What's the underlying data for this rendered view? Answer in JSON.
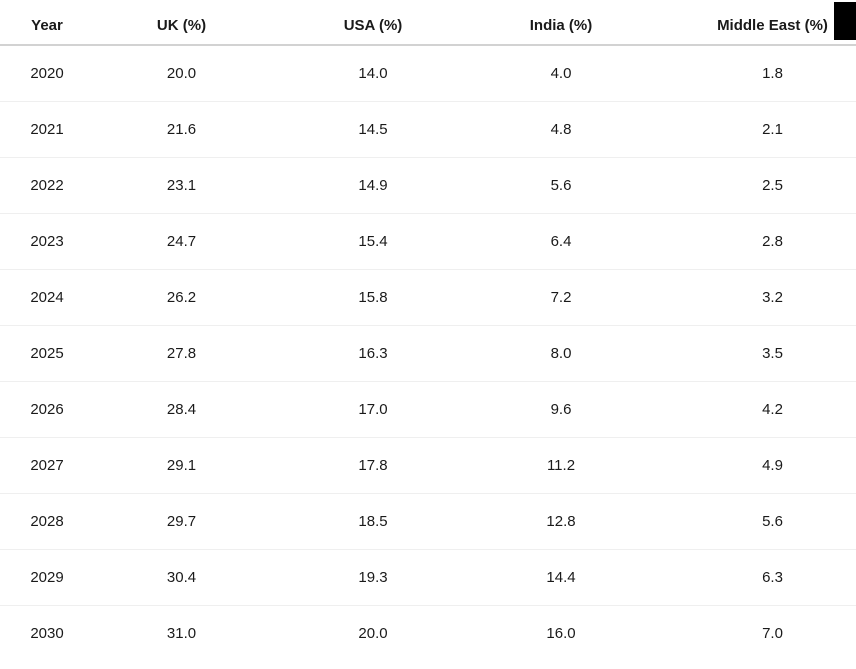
{
  "table": {
    "columns": [
      "Year",
      "UK (%)",
      "USA (%)",
      "India (%)",
      "Middle East (%)"
    ],
    "rows": [
      [
        "2020",
        "20.0",
        "14.0",
        "4.0",
        "1.8"
      ],
      [
        "2021",
        "21.6",
        "14.5",
        "4.8",
        "2.1"
      ],
      [
        "2022",
        "23.1",
        "14.9",
        "5.6",
        "2.5"
      ],
      [
        "2023",
        "24.7",
        "15.4",
        "6.4",
        "2.8"
      ],
      [
        "2024",
        "26.2",
        "15.8",
        "7.2",
        "3.2"
      ],
      [
        "2025",
        "27.8",
        "16.3",
        "8.0",
        "3.5"
      ],
      [
        "2026",
        "28.4",
        "17.0",
        "9.6",
        "4.2"
      ],
      [
        "2027",
        "29.1",
        "17.8",
        "11.2",
        "4.9"
      ],
      [
        "2028",
        "29.7",
        "18.5",
        "12.8",
        "5.6"
      ],
      [
        "2029",
        "30.4",
        "19.3",
        "14.4",
        "6.3"
      ],
      [
        "2030",
        "31.0",
        "20.0",
        "16.0",
        "7.0"
      ]
    ]
  },
  "chart_data": {
    "type": "table",
    "columns": [
      "Year",
      "UK (%)",
      "USA (%)",
      "India (%)",
      "Middle East (%)"
    ],
    "rows": [
      [
        2020,
        20.0,
        14.0,
        4.0,
        1.8
      ],
      [
        2021,
        21.6,
        14.5,
        4.8,
        2.1
      ],
      [
        2022,
        23.1,
        14.9,
        5.6,
        2.5
      ],
      [
        2023,
        24.7,
        15.4,
        6.4,
        2.8
      ],
      [
        2024,
        26.2,
        15.8,
        7.2,
        3.2
      ],
      [
        2025,
        27.8,
        16.3,
        8.0,
        3.5
      ],
      [
        2026,
        28.4,
        17.0,
        9.6,
        4.2
      ],
      [
        2027,
        29.1,
        17.8,
        11.2,
        4.9
      ],
      [
        2028,
        29.7,
        18.5,
        12.8,
        5.6
      ],
      [
        2029,
        30.4,
        19.3,
        14.4,
        6.3
      ],
      [
        2030,
        31.0,
        20.0,
        16.0,
        7.0
      ]
    ],
    "series": [
      {
        "name": "UK (%)",
        "values": [
          20.0,
          21.6,
          23.1,
          24.7,
          26.2,
          27.8,
          28.4,
          29.1,
          29.7,
          30.4,
          31.0
        ]
      },
      {
        "name": "USA (%)",
        "values": [
          14.0,
          14.5,
          14.9,
          15.4,
          15.8,
          16.3,
          17.0,
          17.8,
          18.5,
          19.3,
          20.0
        ]
      },
      {
        "name": "India (%)",
        "values": [
          4.0,
          4.8,
          5.6,
          6.4,
          7.2,
          8.0,
          9.6,
          11.2,
          12.8,
          14.4,
          16.0
        ]
      },
      {
        "name": "Middle East (%)",
        "values": [
          1.8,
          2.1,
          2.5,
          2.8,
          3.2,
          3.5,
          4.2,
          4.9,
          5.6,
          6.3,
          7.0
        ]
      }
    ],
    "categories": [
      2020,
      2021,
      2022,
      2023,
      2024,
      2025,
      2026,
      2027,
      2028,
      2029,
      2030
    ],
    "title": "",
    "xlabel": "Year",
    "ylabel": ""
  },
  "colors": {
    "background": "#ffffff",
    "text": "#1a1a1a",
    "header_border": "#d2d2d2",
    "row_border": "#efefef",
    "black_box": "#000000"
  }
}
